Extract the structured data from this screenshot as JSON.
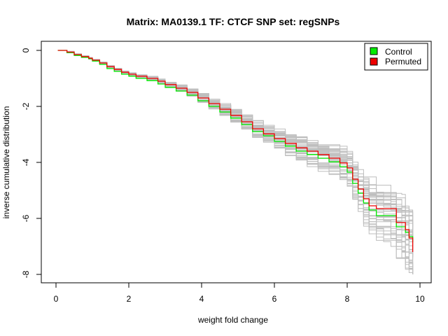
{
  "chart_data": {
    "type": "line",
    "title": "Matrix: MA0139.1 TF: CTCF SNP set: regSNPs",
    "xlabel": "weight fold change",
    "ylabel": "inverse cumulative distribution",
    "xlim": [
      0,
      10
    ],
    "ylim": [
      -8,
      0
    ],
    "x_ticks": [
      0,
      2,
      4,
      6,
      8,
      10
    ],
    "y_ticks": [
      0,
      -2,
      -4,
      -6,
      -8
    ],
    "grid": false,
    "legend_position": "top-right",
    "background_series": {
      "description": "random permutation curves",
      "color": "#bebebe",
      "count": 40
    },
    "series": [
      {
        "name": "Control",
        "color": "#00ee00",
        "x": [
          0.05,
          0.2,
          0.3,
          0.5,
          0.7,
          0.9,
          1.0,
          1.2,
          1.4,
          1.6,
          1.8,
          2.0,
          2.2,
          2.5,
          2.8,
          3.0,
          3.3,
          3.6,
          3.9,
          4.2,
          4.5,
          4.8,
          5.1,
          5.4,
          5.7,
          6.0,
          6.3,
          6.6,
          6.9,
          7.2,
          7.5,
          7.8,
          8.0,
          8.15,
          8.3,
          8.45,
          8.6,
          8.8,
          9.0,
          9.2,
          9.35,
          9.5,
          9.6,
          9.7,
          9.8
        ],
        "y": [
          0,
          0,
          -0.08,
          -0.18,
          -0.25,
          -0.3,
          -0.38,
          -0.5,
          -0.65,
          -0.75,
          -0.85,
          -0.92,
          -1.0,
          -1.08,
          -1.2,
          -1.32,
          -1.45,
          -1.6,
          -1.8,
          -2.0,
          -2.2,
          -2.42,
          -2.65,
          -2.9,
          -3.05,
          -3.25,
          -3.42,
          -3.6,
          -3.72,
          -3.85,
          -3.98,
          -4.15,
          -4.35,
          -4.75,
          -5.1,
          -5.45,
          -5.7,
          -5.9,
          -5.9,
          -5.9,
          -6.3,
          -6.3,
          -6.5,
          -6.65,
          -6.85
        ]
      },
      {
        "name": "Permuted",
        "color": "#ee0000",
        "x": [
          0.05,
          0.2,
          0.3,
          0.5,
          0.7,
          0.9,
          1.0,
          1.2,
          1.4,
          1.6,
          1.8,
          2.0,
          2.2,
          2.5,
          2.8,
          3.0,
          3.3,
          3.6,
          3.9,
          4.2,
          4.5,
          4.8,
          5.1,
          5.4,
          5.7,
          6.0,
          6.3,
          6.6,
          6.9,
          7.2,
          7.5,
          7.8,
          8.0,
          8.15,
          8.3,
          8.45,
          8.6,
          8.8,
          9.0,
          9.2,
          9.35,
          9.5,
          9.6,
          9.7,
          9.8
        ],
        "y": [
          0,
          0,
          -0.06,
          -0.15,
          -0.22,
          -0.28,
          -0.35,
          -0.45,
          -0.58,
          -0.68,
          -0.78,
          -0.85,
          -0.92,
          -1.0,
          -1.1,
          -1.22,
          -1.35,
          -1.5,
          -1.7,
          -1.9,
          -2.1,
          -2.32,
          -2.55,
          -2.8,
          -2.98,
          -3.15,
          -3.32,
          -3.48,
          -3.6,
          -3.72,
          -3.85,
          -4.02,
          -4.2,
          -4.6,
          -4.95,
          -5.3,
          -5.55,
          -5.65,
          -5.65,
          -5.65,
          -6.15,
          -6.15,
          -6.4,
          -6.7,
          -7.2
        ]
      }
    ]
  }
}
